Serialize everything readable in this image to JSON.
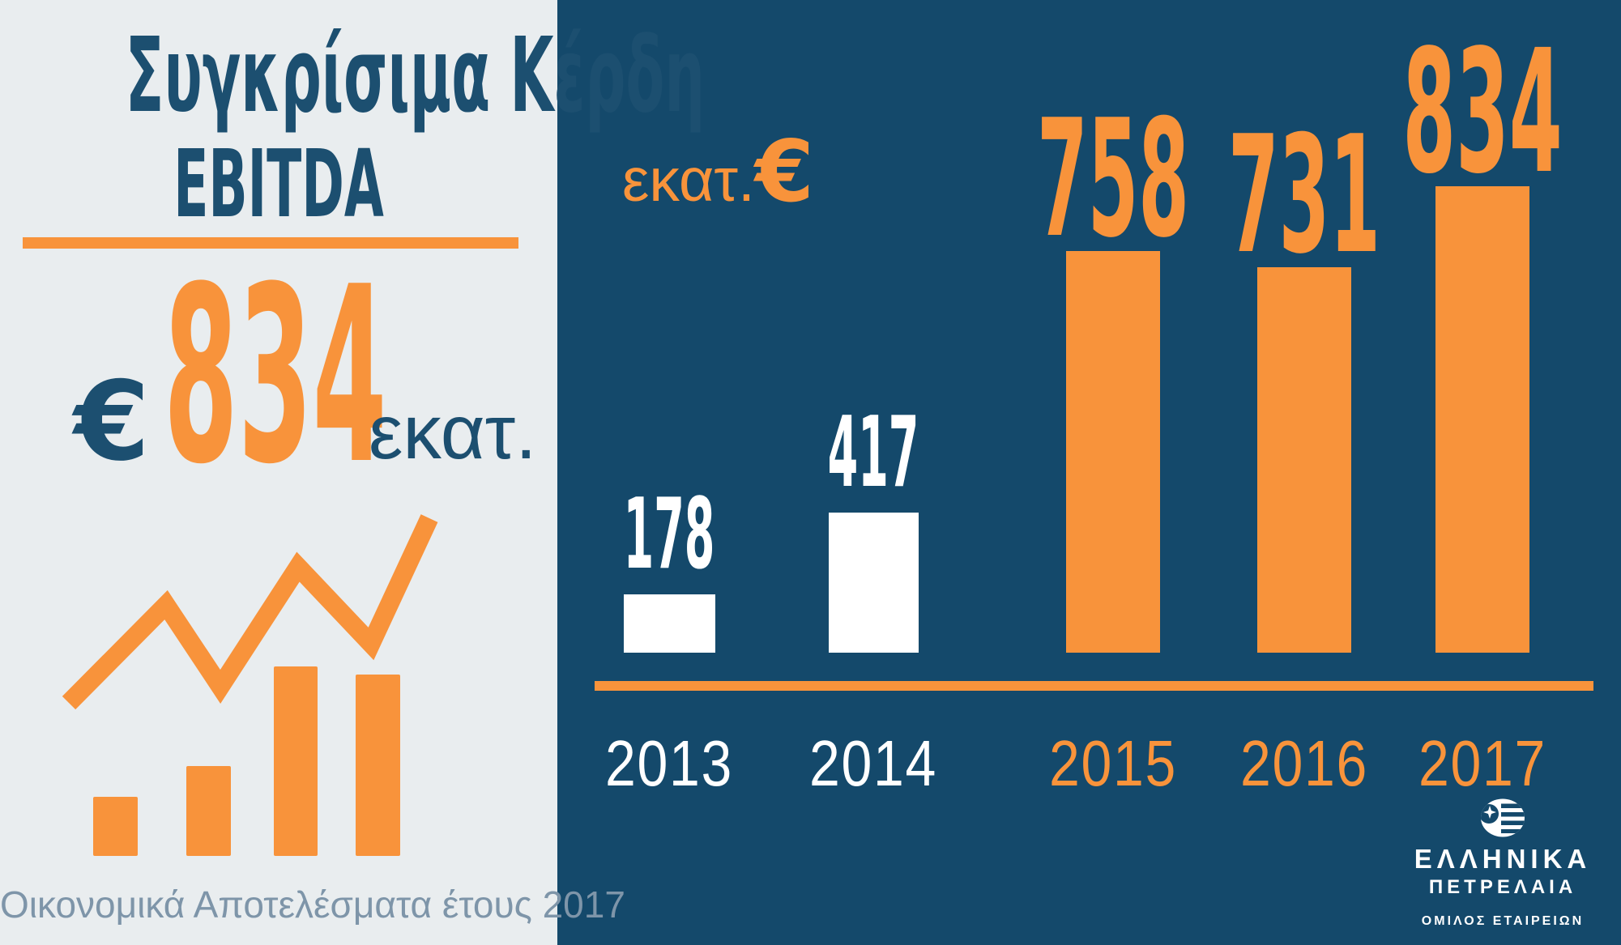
{
  "colors": {
    "panel_navy": "#14496B",
    "accent_orange": "#F8933B",
    "panel_light": "#E9EDEF",
    "title_navy": "#1C4F70",
    "caption_slate": "#7E95A9",
    "bar_white": "#FFFFFF"
  },
  "left_panel": {
    "title_line1": "Συγκρίσιμα Κέρδη",
    "title_line2": "EBITDA",
    "value_currency": "€",
    "value_number": "834",
    "value_unit": "εκατ.",
    "caption": "Οικονομικά Αποτελέσματα έτους 2017"
  },
  "chart_data": {
    "type": "bar",
    "title": "Συγκρίσιμα Κέρδη EBITDA",
    "unit_label_text": "εκατ.",
    "unit_label_symbol": "€",
    "categories": [
      "2013",
      "2014",
      "2015",
      "2016",
      "2017"
    ],
    "values": [
      178,
      417,
      758,
      731,
      834
    ],
    "emphasized": [
      false,
      false,
      true,
      true,
      true
    ],
    "bar_colors": [
      "#FFFFFF",
      "#FFFFFF",
      "#F8933B",
      "#F8933B",
      "#F8933B"
    ],
    "label_colors": [
      "#FFFFFF",
      "#FFFFFF",
      "#F8933B",
      "#F8933B",
      "#F8933B"
    ],
    "xlabel": "",
    "ylabel": "εκατ.€",
    "grid": false,
    "legend": false,
    "axis_line_color": "#F8933B"
  },
  "logo": {
    "line1": "ΕΛΛΗΝΙΚΑ",
    "line2": "ΠΕΤΡΕΛΑΙΑ",
    "line3": "ΟΜΙΛΟΣ ΕΤΑΙΡΕΙΩΝ"
  }
}
